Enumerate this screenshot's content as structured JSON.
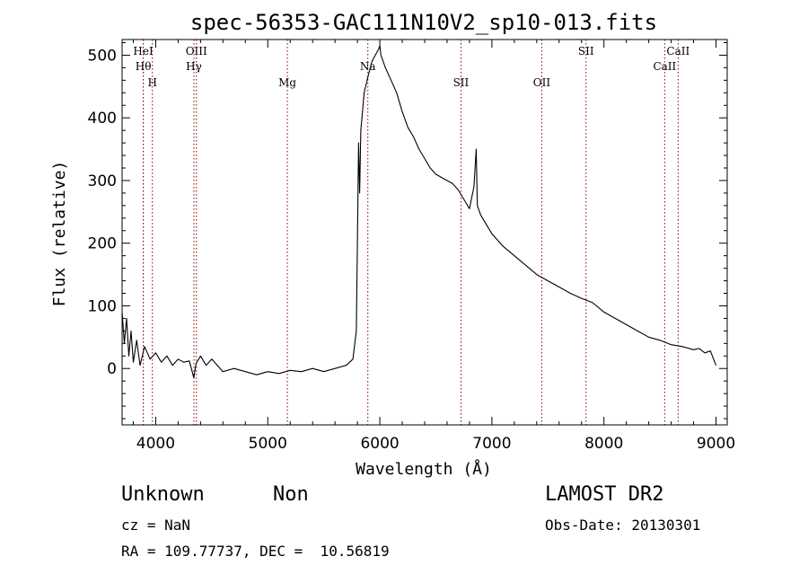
{
  "chart_data": {
    "type": "line",
    "title": "spec-56353-GAC111N10V2_sp10-013.fits",
    "xlabel": "Wavelength (Å)",
    "ylabel": "Flux (relative)",
    "xlim": [
      3700,
      9100
    ],
    "ylim": [
      -90,
      525
    ],
    "xticks": [
      4000,
      5000,
      6000,
      7000,
      8000,
      9000
    ],
    "yticks": [
      0,
      100,
      200,
      300,
      400,
      500
    ],
    "grid": false,
    "line_color": "#000000",
    "marker_color": "#8b0000",
    "series": [
      {
        "x": [
          3700,
          3720,
          3740,
          3760,
          3780,
          3800,
          3830,
          3860,
          3900,
          3950,
          4000,
          4050,
          4100,
          4150,
          4200,
          4250,
          4300,
          4340,
          4360,
          4400,
          4450,
          4500,
          4600,
          4700,
          4800,
          4900,
          5000,
          5100,
          5200,
          5300,
          5400,
          5500,
          5600,
          5700,
          5760,
          5790,
          5800,
          5810,
          5820,
          5830,
          5850,
          5860,
          5880,
          5900,
          5930,
          5960,
          5990,
          6000,
          6010,
          6050,
          6100,
          6150,
          6200,
          6250,
          6300,
          6350,
          6400,
          6450,
          6500,
          6550,
          6600,
          6650,
          6700,
          6750,
          6800,
          6840,
          6860,
          6870,
          6880,
          6900,
          6950,
          7000,
          7100,
          7200,
          7300,
          7400,
          7500,
          7600,
          7700,
          7800,
          7900,
          8000,
          8100,
          8200,
          8300,
          8400,
          8500,
          8600,
          8700,
          8800,
          8850,
          8900,
          8950,
          9000
        ],
        "y": [
          90,
          40,
          80,
          20,
          60,
          10,
          45,
          5,
          35,
          15,
          25,
          10,
          20,
          5,
          15,
          10,
          12,
          -15,
          8,
          20,
          5,
          15,
          -5,
          0,
          -5,
          -10,
          -5,
          -8,
          -3,
          -5,
          0,
          -5,
          0,
          5,
          15,
          60,
          200,
          360,
          280,
          380,
          420,
          440,
          455,
          470,
          490,
          500,
          510,
          515,
          500,
          480,
          460,
          440,
          410,
          385,
          370,
          350,
          335,
          320,
          310,
          305,
          300,
          295,
          285,
          270,
          255,
          290,
          350,
          260,
          255,
          245,
          230,
          215,
          195,
          180,
          165,
          150,
          140,
          130,
          120,
          112,
          105,
          90,
          80,
          70,
          60,
          50,
          45,
          38,
          35,
          30,
          32,
          25,
          28,
          5
        ]
      }
    ],
    "annotations": [
      {
        "label": "Hθ",
        "x": 3889,
        "label_pos": "upper"
      },
      {
        "label": "HeI",
        "x": 3889,
        "label_pos": "top"
      },
      {
        "label": "H",
        "x": 3970,
        "label_pos": "mid"
      },
      {
        "label": "OIII",
        "x": 4363,
        "label_pos": "top"
      },
      {
        "label": "Hγ",
        "x": 4341,
        "label_pos": "upper"
      },
      {
        "label": "Mg",
        "x": 5175,
        "label_pos": "mid"
      },
      {
        "label": "Na",
        "x": 5893,
        "label_pos": "upper"
      },
      {
        "label": "SII",
        "x": 6724,
        "label_pos": "mid"
      },
      {
        "label": "OII",
        "x": 7445,
        "label_pos": "mid"
      },
      {
        "label": "SII",
        "x": 7840,
        "label_pos": "top"
      },
      {
        "label": "CaII",
        "x": 8542,
        "label_pos": "upper"
      },
      {
        "label": "CaII",
        "x": 8662,
        "label_pos": "top"
      }
    ]
  },
  "info": {
    "object_class": "Unknown",
    "object_subclass": "Non",
    "survey": "LAMOST DR2",
    "redshift": "cz = NaN",
    "obs_date": "Obs-Date: 20130301",
    "coordinates": "RA = 109.77737, DEC =  10.56819"
  }
}
